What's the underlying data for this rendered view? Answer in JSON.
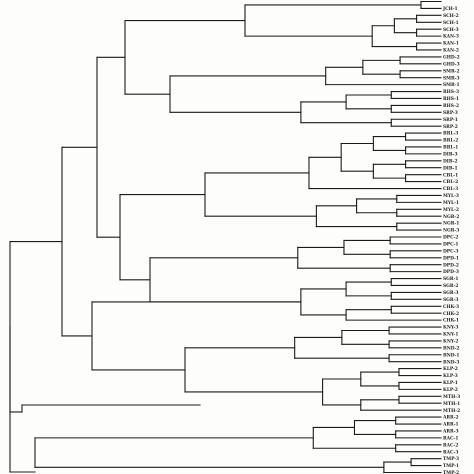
{
  "diagram": {
    "type": "dendrogram",
    "orientation": "left-to-right",
    "line_color": "#1c1c1c",
    "background": "#fdfdfc",
    "leaves": [
      "",
      "JCH-1",
      "SCH-2",
      "SCH-1",
      "SCH-3",
      "KAN-3",
      "KAN-1",
      "KAN-2",
      "GHD-2",
      "GHD-3",
      "SMR-2",
      "SMR-3",
      "SMR-1",
      "RHS-3",
      "RHS-1",
      "RHS-2",
      "SRP-3",
      "SRP-1",
      "SRP-2",
      "BRL-3",
      "BRL-2",
      "BRL-1",
      "DIB-3",
      "DIB-2",
      "DIB-1",
      "CBL-1",
      "CBL-2",
      "CBL-3",
      "MYL-3",
      "MYL-1",
      "MYL-2",
      "NGR-2",
      "NGR-1",
      "NGR-3",
      "DPC-2",
      "DPC-1",
      "DPC-3",
      "DPD-1",
      "DPD-2",
      "DPD-3",
      "SGR-1",
      "SGR-2",
      "SGR-3",
      "SGR-3",
      "CHK-3",
      "CHK-2",
      "CHK-1",
      "KNY-3",
      "KNY-1",
      "KNY-2",
      "BND-2",
      "BND-1",
      "BND-3",
      "KLP-2",
      "KLP-3",
      "KLP-1",
      "KLP-2",
      "MTH-3",
      "MTH-1",
      "MTH-2",
      "ARR-2",
      "ARR-1",
      "ARR-3",
      "RAC-1",
      "RAC-2",
      "RAC-3",
      "TMP-3",
      "TMP-1",
      "TMP-2"
    ],
    "clusters": [
      [
        0,
        1
      ],
      [
        2,
        3,
        4,
        5,
        6,
        7
      ],
      [
        8,
        9,
        10,
        11,
        12
      ],
      [
        13,
        14,
        15,
        16,
        17,
        18
      ],
      [
        19,
        20,
        21,
        22,
        23,
        24,
        25,
        26,
        27
      ],
      [
        28,
        29,
        30,
        31,
        32,
        33
      ],
      [
        34,
        35,
        36,
        37,
        38,
        39
      ],
      [
        40,
        41,
        42,
        43,
        44,
        45,
        46
      ],
      [
        47,
        48,
        49,
        50,
        51,
        52
      ],
      [
        53,
        54,
        55,
        56,
        57,
        58,
        59
      ],
      [
        60,
        61,
        62,
        63,
        64,
        65
      ],
      [
        66,
        67,
        68
      ]
    ]
  }
}
